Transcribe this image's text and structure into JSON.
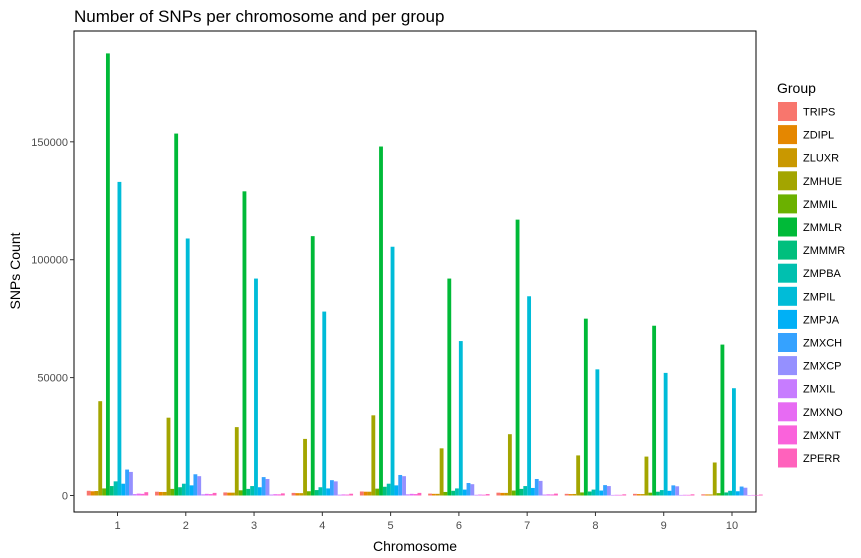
{
  "chart_data": {
    "type": "bar",
    "title": "Number of SNPs per chromosome and per group",
    "xlabel": "Chromosome",
    "ylabel": "SNPs Count",
    "ylim": [
      -7000,
      197000
    ],
    "yticks": [
      0,
      50000,
      100000,
      150000
    ],
    "ytick_labels": [
      "0",
      "50000",
      "100000",
      "150000"
    ],
    "categories": [
      "1",
      "2",
      "3",
      "4",
      "5",
      "6",
      "7",
      "8",
      "9",
      "10"
    ],
    "legend_title": "Group",
    "legend_position": "right",
    "grid": false,
    "series": [
      {
        "name": "TRIPS",
        "color": "#F8766D",
        "values": [
          2000,
          1600,
          1300,
          1100,
          1700,
          800,
          1200,
          700,
          700,
          500
        ]
      },
      {
        "name": "ZDIPL",
        "color": "#E58700",
        "values": [
          1800,
          1500,
          1200,
          1000,
          1600,
          700,
          1100,
          600,
          600,
          450
        ]
      },
      {
        "name": "ZLUXR",
        "color": "#C99800",
        "values": [
          1900,
          1500,
          1200,
          1000,
          1600,
          700,
          1100,
          650,
          600,
          450
        ]
      },
      {
        "name": "ZMHUE",
        "color": "#A3A500",
        "values": [
          40000,
          33000,
          29000,
          24000,
          34000,
          20000,
          26000,
          17000,
          16500,
          14000
        ]
      },
      {
        "name": "ZMMIL",
        "color": "#6BB100",
        "values": [
          3000,
          2800,
          2200,
          1800,
          2900,
          1500,
          2100,
          1300,
          1200,
          1000
        ]
      },
      {
        "name": "ZMMLR",
        "color": "#00BA38",
        "values": [
          187500,
          153500,
          129000,
          110000,
          148000,
          92000,
          117000,
          75000,
          72000,
          64000
        ]
      },
      {
        "name": "ZMMMR",
        "color": "#00BF7D",
        "values": [
          4000,
          3500,
          2800,
          2300,
          3700,
          2000,
          2800,
          1700,
          1600,
          1300
        ]
      },
      {
        "name": "ZMPBA",
        "color": "#00C0AF",
        "values": [
          6000,
          5000,
          4000,
          3500,
          5000,
          3000,
          4000,
          2500,
          2300,
          2000
        ]
      },
      {
        "name": "ZMPIL",
        "color": "#00BCD8",
        "values": [
          133000,
          109000,
          92000,
          78000,
          105500,
          65500,
          84500,
          53500,
          52000,
          45500
        ]
      },
      {
        "name": "ZMPJA",
        "color": "#00B0F6",
        "values": [
          5000,
          4300,
          3500,
          3000,
          4300,
          2500,
          3200,
          2100,
          2000,
          1800
        ]
      },
      {
        "name": "ZMXCH",
        "color": "#35A2FF",
        "values": [
          11000,
          9000,
          7800,
          6500,
          8700,
          5300,
          7000,
          4400,
          4300,
          3800
        ]
      },
      {
        "name": "ZMXCP",
        "color": "#9590FF",
        "values": [
          10000,
          8200,
          7000,
          6000,
          8200,
          4800,
          6200,
          4000,
          3900,
          3300
        ]
      },
      {
        "name": "ZMXIL",
        "color": "#C77CFF",
        "values": [
          600,
          500,
          400,
          350,
          500,
          300,
          400,
          250,
          250,
          200
        ]
      },
      {
        "name": "ZMXNO",
        "color": "#E76BF3",
        "values": [
          800,
          700,
          550,
          450,
          700,
          400,
          500,
          300,
          300,
          250
        ]
      },
      {
        "name": "ZMXNT",
        "color": "#FA62DB",
        "values": [
          700,
          600,
          500,
          400,
          600,
          350,
          450,
          280,
          280,
          220
        ]
      },
      {
        "name": "ZPERR",
        "color": "#FF62BC",
        "values": [
          1400,
          1100,
          900,
          750,
          1100,
          600,
          800,
          500,
          500,
          400
        ]
      }
    ]
  }
}
